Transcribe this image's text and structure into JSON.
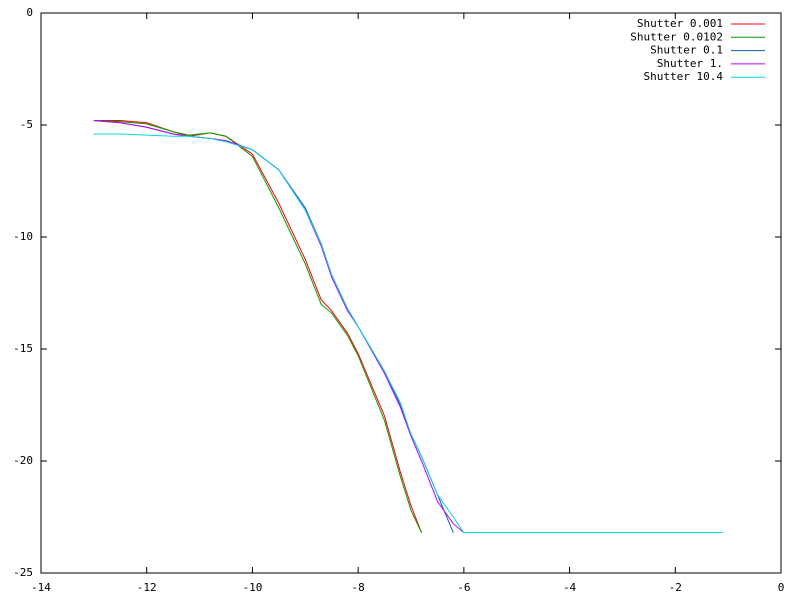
{
  "chart_data": {
    "type": "line",
    "x": [
      -13,
      -12.5,
      -12,
      -11.5,
      -11.2,
      -10.8,
      -10.5,
      -10,
      -9.5,
      -9,
      -8.7,
      -8.5,
      -8.2,
      -8,
      -7.5,
      -7.2,
      -7,
      -6.8,
      -6.5,
      -6.2,
      -6,
      -4,
      -2,
      -1.1
    ],
    "series": [
      {
        "name": "Shutter 0.001",
        "color": "#ff0000",
        "values": [
          -4.8,
          -4.8,
          -4.9,
          -5.3,
          -5.5,
          -5.35,
          -5.5,
          -6.3,
          -8.5,
          -11,
          -12.8,
          -13.3,
          -14.3,
          -15.2,
          -18,
          -20.5,
          -22,
          -23.2,
          null,
          null,
          null,
          null,
          null,
          null
        ]
      },
      {
        "name": "Shutter 0.0102",
        "color": "#00a000",
        "values": [
          -4.8,
          -4.85,
          -4.95,
          -5.3,
          -5.45,
          -5.35,
          -5.5,
          -6.4,
          -8.7,
          -11.2,
          -13,
          -13.4,
          -14.4,
          -15.3,
          -18.2,
          -20.7,
          -22.2,
          -23.2,
          null,
          null,
          null,
          null,
          null,
          null
        ]
      },
      {
        "name": "Shutter 0.1",
        "color": "#1060b0",
        "values": [
          -4.8,
          -4.9,
          -5.1,
          -5.4,
          -5.5,
          -5.6,
          -5.7,
          -6.1,
          -7,
          -8.7,
          -10.3,
          -11.7,
          -13.2,
          -14,
          -16,
          -17.5,
          -18.8,
          -19.8,
          -21.5,
          -23.2,
          null,
          null,
          null,
          null
        ]
      },
      {
        "name": "Shutter 1.",
        "color": "#c000ff",
        "values": [
          -4.8,
          -4.9,
          -5.1,
          -5.4,
          -5.5,
          -5.6,
          -5.7,
          -6.1,
          -7,
          -8.8,
          -10.4,
          -11.8,
          -13.3,
          -14,
          -16.1,
          -17.6,
          -18.9,
          -20,
          -21.8,
          -22.8,
          -23.2,
          null,
          null,
          null
        ]
      },
      {
        "name": "Shutter 10.4",
        "color": "#00d8e8",
        "values": [
          -5.4,
          -5.4,
          -5.45,
          -5.5,
          -5.5,
          -5.6,
          -5.75,
          -6.1,
          -7,
          -8.8,
          -10.3,
          -11.7,
          -13.2,
          -14,
          -16,
          -17.4,
          -18.8,
          -19.8,
          -21.5,
          -22.5,
          -23.2,
          -23.2,
          -23.2,
          -23.2
        ]
      }
    ],
    "xlim": [
      -14,
      0
    ],
    "xticks": [
      -14,
      -12,
      -10,
      -8,
      -6,
      -4,
      -2,
      0
    ],
    "ylim": [
      -25,
      0
    ],
    "yticks": [
      0,
      -5,
      -10,
      -15,
      -20,
      -25
    ],
    "legend": "top-right"
  }
}
